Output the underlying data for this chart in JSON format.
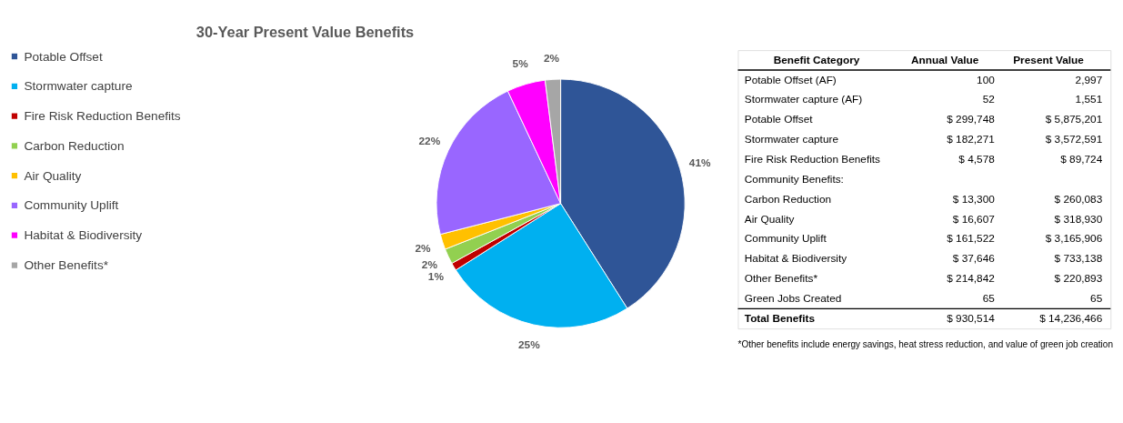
{
  "chart_data": [
    {
      "type": "pie",
      "title": "30-Year Present Value Benefits",
      "categories": [
        "Potable Offset",
        "Stormwater capture",
        "Fire Risk Reduction Benefits",
        "Carbon Reduction",
        "Air Quality",
        "Community Uplift",
        "Habitat & Biodiversity",
        "Other Benefits*"
      ],
      "values": [
        41,
        25,
        1,
        2,
        2,
        22,
        5,
        2
      ],
      "colors": [
        "#2f5597",
        "#00b0f0",
        "#c00000",
        "#92d050",
        "#ffc000",
        "#9966ff",
        "#ff00ff",
        "#a6a6a6"
      ],
      "value_labels": [
        "41%",
        "25%",
        "1%",
        "2%",
        "2%",
        "22%",
        "5%",
        "2%"
      ],
      "legend": "left"
    },
    {
      "type": "other",
      "categories": [
        "Benefit Category",
        "Annual Value",
        "Present Value"
      ],
      "annotations": [
        "Potable Offset (AF)",
        "100",
        "2,997",
        "Stormwater capture (AF)",
        "52",
        "1,551",
        "Potable Offset",
        "$ 299,748",
        "$ 5,875,201",
        "Stormwater capture",
        "$ 182,271",
        "$ 3,572,591",
        "Fire Risk Reduction Benefits",
        "$ 4,578",
        "$ 89,724",
        "Community Benefits:",
        null,
        null,
        "Carbon Reduction",
        "$ 13,300",
        "$ 260,083",
        "Air Quality",
        "$ 16,607",
        "$ 318,930",
        "Community Uplift",
        "$ 161,522",
        "$ 3,165,906",
        "Habitat & Biodiversity",
        "$ 37,646",
        "$ 733,138",
        "Other Benefits*",
        "$ 214,842",
        "$ 220,893",
        "Green Jobs Created",
        "65",
        "65",
        "Total Benefits",
        "$ 930,514",
        "$ 14,236,466",
        "*Other benefits include energy savings, heat stress reduction, and value of green job creation"
      ]
    }
  ]
}
